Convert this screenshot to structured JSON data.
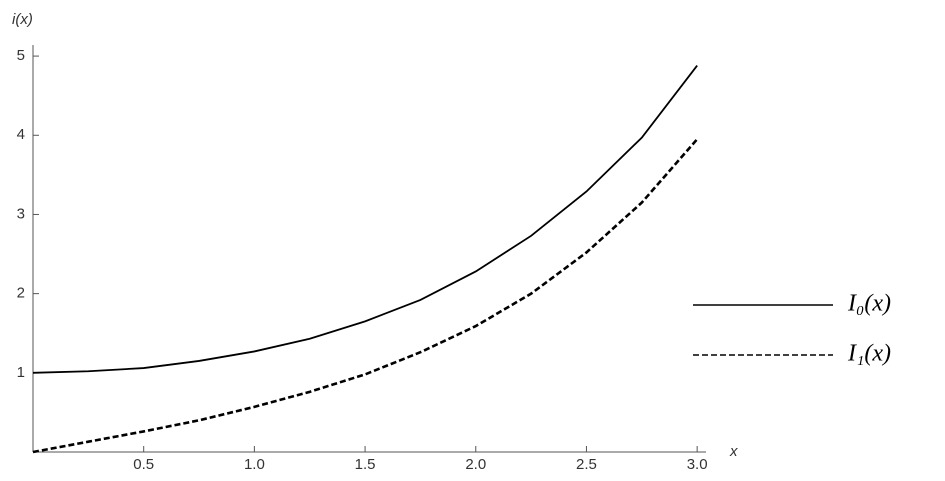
{
  "chart_data": {
    "type": "line",
    "x_label": "x",
    "y_label": "i(x)",
    "x": [
      0,
      0.25,
      0.5,
      0.75,
      1,
      1.25,
      1.5,
      1.75,
      2,
      2.25,
      2.5,
      2.75,
      3
    ],
    "series": [
      {
        "name": "I₀(x)",
        "color": "#000000",
        "dash": "solid",
        "values": [
          1,
          1.02,
          1.06,
          1.15,
          1.27,
          1.43,
          1.65,
          1.92,
          2.28,
          2.73,
          3.29,
          3.97,
          4.88
        ]
      },
      {
        "name": "I₁(x)",
        "color": "#000000",
        "dash": "dashed",
        "values": [
          0,
          0.13,
          0.26,
          0.4,
          0.57,
          0.76,
          0.98,
          1.26,
          1.59,
          2.0,
          2.52,
          3.15,
          3.95
        ]
      }
    ],
    "xlim": [
      0,
      3.04
    ],
    "ylim": [
      0,
      5.14
    ],
    "xticks": [
      0.5,
      {
        "value": 1,
        "label": "1.0"
      },
      1.5,
      {
        "value": 2,
        "label": "2.0"
      },
      2.5,
      {
        "value": 3,
        "label": "3.0"
      }
    ],
    "yticks": [
      1,
      2,
      3,
      4,
      5
    ],
    "legend": "right"
  }
}
